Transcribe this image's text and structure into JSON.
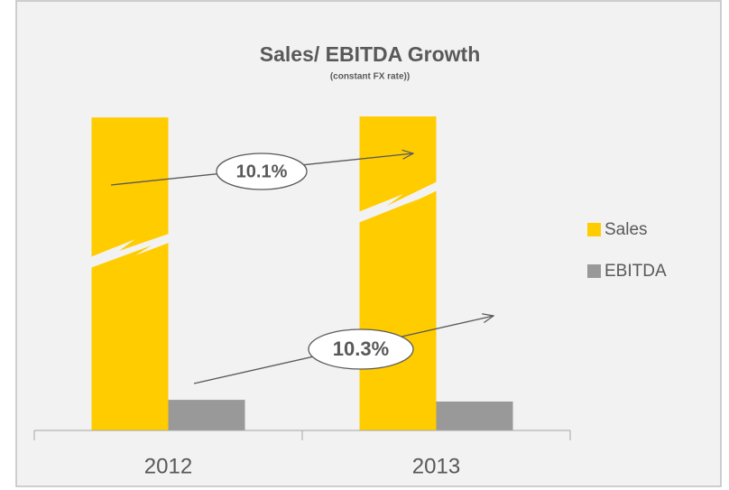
{
  "chart_data": {
    "type": "bar",
    "title": "Sales/ EBITDA Growth",
    "subtitle": "(constant FX rate))",
    "categories": [
      "2012",
      "2013"
    ],
    "series": [
      {
        "name": "Sales",
        "color": "#ffcc00",
        "values": [
          92,
          92.3
        ]
      },
      {
        "name": "EBITDA",
        "color": "#999999",
        "values": [
          9,
          8.5
        ]
      }
    ],
    "ylim": [
      0,
      100
    ],
    "annotations": [
      "10.1%",
      "10.3%"
    ],
    "legend": "right"
  }
}
